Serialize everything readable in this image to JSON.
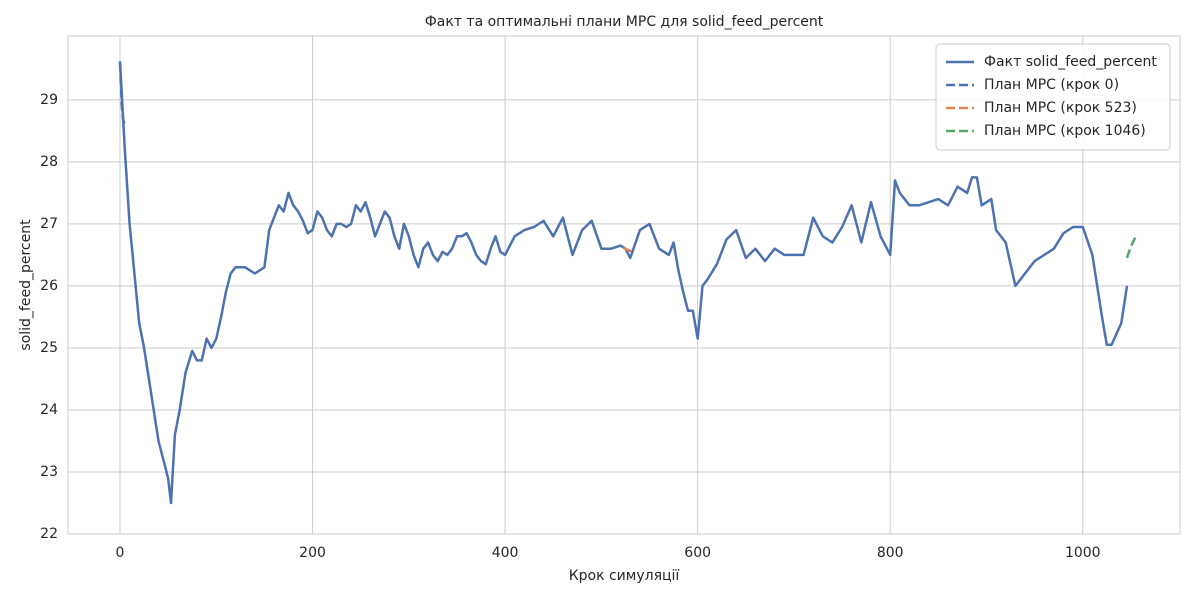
{
  "chart_data": {
    "type": "line",
    "title": "Факт та оптимальні плани MPC для solid_feed_percent",
    "x_label": "Крок симуляції",
    "y_label": "solid_feed_percent",
    "xlim": [
      -54,
      1101
    ],
    "ylim": [
      22,
      30.03
    ],
    "xticks": [
      0,
      200,
      400,
      600,
      800,
      1000
    ],
    "yticks": [
      22,
      23,
      24,
      25,
      26,
      27,
      28,
      29
    ],
    "grid": true,
    "legend_loc": "upper right",
    "series": [
      {
        "name": "Факт solid_feed_percent",
        "color": "#4c72b0",
        "linestyle": "solid",
        "x": [
          0,
          5,
          10,
          15,
          20,
          25,
          30,
          35,
          40,
          45,
          50,
          53,
          57,
          62,
          68,
          75,
          80,
          85,
          90,
          95,
          100,
          105,
          110,
          115,
          120,
          130,
          140,
          150,
          155,
          160,
          165,
          170,
          175,
          180,
          185,
          190,
          195,
          200,
          205,
          210,
          215,
          220,
          225,
          230,
          235,
          240,
          245,
          250,
          255,
          260,
          265,
          270,
          275,
          280,
          285,
          290,
          295,
          300,
          305,
          310,
          315,
          320,
          325,
          330,
          335,
          340,
          345,
          350,
          355,
          360,
          365,
          370,
          375,
          380,
          385,
          390,
          395,
          400,
          410,
          420,
          430,
          440,
          450,
          460,
          470,
          480,
          490,
          500,
          510,
          520,
          525,
          530,
          540,
          550,
          560,
          570,
          575,
          580,
          585,
          590,
          595,
          600,
          605,
          610,
          620,
          630,
          640,
          650,
          660,
          670,
          680,
          690,
          700,
          710,
          720,
          730,
          740,
          750,
          760,
          770,
          780,
          790,
          800,
          805,
          810,
          820,
          830,
          840,
          850,
          860,
          870,
          880,
          885,
          890,
          895,
          905,
          910,
          920,
          930,
          940,
          950,
          960,
          970,
          980,
          990,
          1000,
          1010,
          1020,
          1025,
          1030,
          1040,
          1046
        ],
        "values": [
          29.62,
          28.2,
          27.0,
          26.2,
          25.4,
          25.0,
          24.5,
          24.0,
          23.5,
          23.2,
          22.9,
          22.5,
          23.6,
          24.0,
          24.6,
          24.95,
          24.8,
          24.8,
          25.15,
          25.0,
          25.15,
          25.5,
          25.9,
          26.2,
          26.3,
          26.3,
          26.2,
          26.3,
          26.9,
          27.1,
          27.3,
          27.2,
          27.5,
          27.3,
          27.2,
          27.05,
          26.85,
          26.9,
          27.2,
          27.1,
          26.9,
          26.8,
          27.0,
          27.0,
          26.95,
          27.0,
          27.3,
          27.2,
          27.35,
          27.1,
          26.8,
          27.0,
          27.2,
          27.1,
          26.8,
          26.6,
          27.0,
          26.8,
          26.5,
          26.3,
          26.6,
          26.7,
          26.5,
          26.4,
          26.55,
          26.5,
          26.6,
          26.8,
          26.8,
          26.85,
          26.7,
          26.5,
          26.4,
          26.35,
          26.6,
          26.8,
          26.55,
          26.5,
          26.8,
          26.9,
          26.95,
          27.05,
          26.8,
          27.1,
          26.5,
          26.9,
          27.05,
          26.6,
          26.6,
          26.65,
          26.6,
          26.45,
          26.9,
          27.0,
          26.6,
          26.5,
          26.7,
          26.25,
          25.9,
          25.6,
          25.6,
          25.15,
          26.0,
          26.1,
          26.35,
          26.75,
          26.9,
          26.45,
          26.6,
          26.4,
          26.6,
          26.5,
          26.5,
          26.5,
          27.1,
          26.8,
          26.7,
          26.95,
          27.3,
          26.7,
          27.35,
          26.8,
          26.5,
          27.7,
          27.5,
          27.3,
          27.3,
          27.35,
          27.4,
          27.3,
          27.6,
          27.5,
          27.75,
          27.75,
          27.3,
          27.4,
          26.9,
          26.7,
          26.0,
          26.2,
          26.4,
          26.5,
          26.6,
          26.85,
          26.95,
          26.95,
          26.5,
          25.5,
          25.05,
          25.05,
          25.4,
          26.0
        ]
      },
      {
        "name": "План MPC (крок 0)",
        "color": "#4c72b0",
        "linestyle": "dashed",
        "x": [
          0,
          1,
          2,
          3,
          4,
          5
        ],
        "values": [
          29.6,
          29.2,
          28.9,
          28.7,
          28.65,
          28.6
        ]
      },
      {
        "name": "План MPC (крок 523)",
        "color": "#dd8452",
        "linestyle": "dashed",
        "x": [
          523,
          525,
          527,
          529,
          531,
          533
        ],
        "values": [
          26.62,
          26.6,
          26.58,
          26.57,
          26.56,
          26.55
        ]
      },
      {
        "name": "План MPC (крок 1046)",
        "color": "#55a868",
        "linestyle": "dashed",
        "x": [
          1046,
          1048,
          1050,
          1052,
          1054,
          1056
        ],
        "values": [
          26.45,
          26.55,
          26.63,
          26.7,
          26.76,
          26.82
        ]
      }
    ]
  }
}
